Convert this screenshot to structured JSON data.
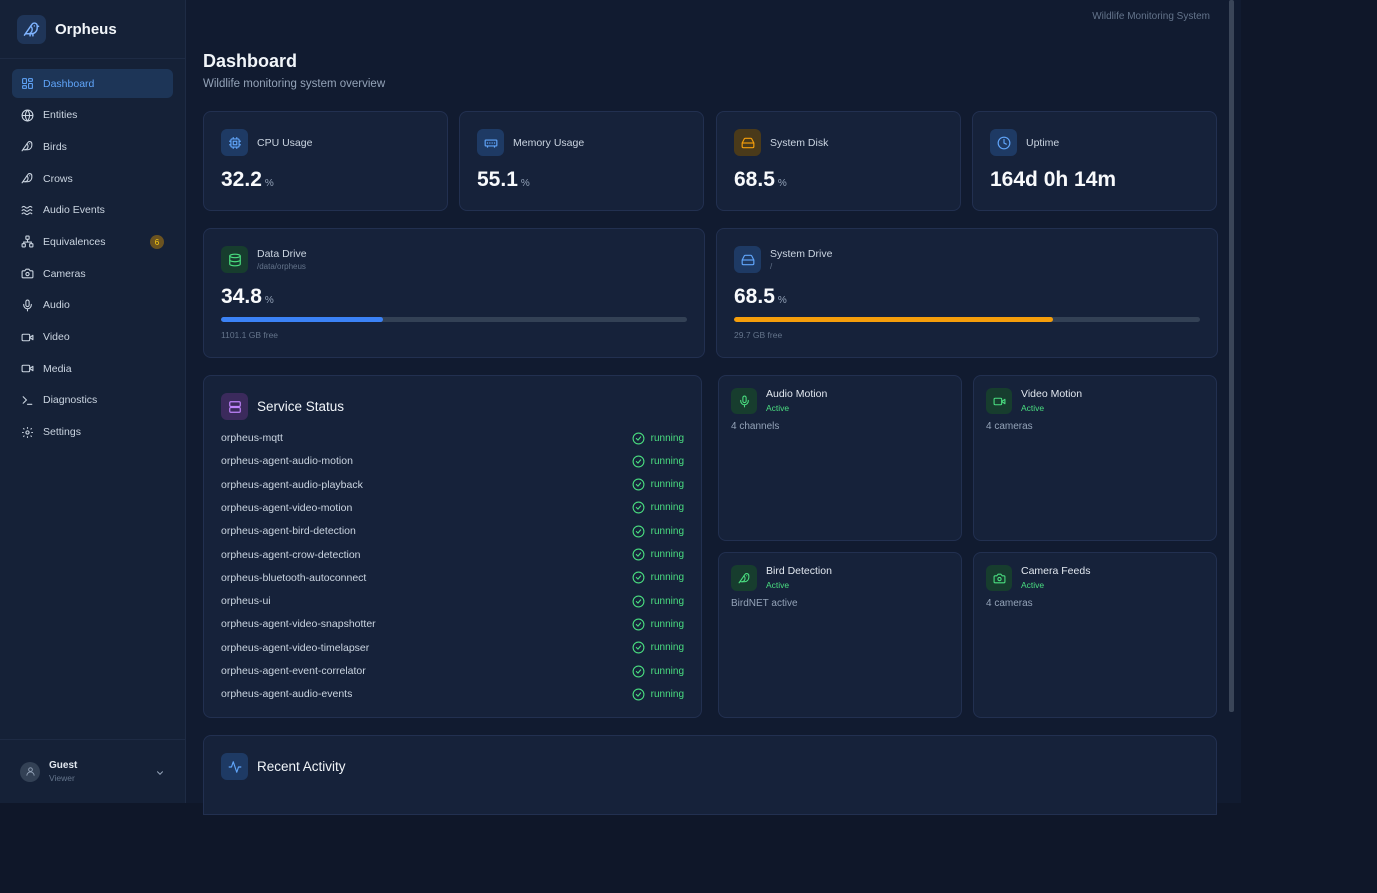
{
  "app": {
    "name": "Orpheus",
    "system_label": "Wildlife Monitoring System"
  },
  "sidebar": {
    "items": [
      {
        "label": "Dashboard",
        "icon": "grid-icon",
        "active": true
      },
      {
        "label": "Entities",
        "icon": "globe-icon"
      },
      {
        "label": "Birds",
        "icon": "bird-icon"
      },
      {
        "label": "Crows",
        "icon": "bird-icon"
      },
      {
        "label": "Audio Events",
        "icon": "waves-icon"
      },
      {
        "label": "Equivalences",
        "icon": "network-icon",
        "badge": "6"
      },
      {
        "label": "Cameras",
        "icon": "camera-icon"
      },
      {
        "label": "Audio",
        "icon": "mic-icon"
      },
      {
        "label": "Video",
        "icon": "video-icon"
      },
      {
        "label": "Media",
        "icon": "media-icon"
      },
      {
        "label": "Diagnostics",
        "icon": "terminal-icon"
      },
      {
        "label": "Settings",
        "icon": "gear-icon"
      }
    ],
    "user": {
      "name": "Guest",
      "role": "Viewer"
    }
  },
  "page": {
    "title": "Dashboard",
    "subtitle": "Wildlife monitoring system overview"
  },
  "stats": {
    "cpu": {
      "label": "CPU Usage",
      "value": "32.2",
      "unit": "%"
    },
    "memory": {
      "label": "Memory Usage",
      "value": "55.1",
      "unit": "%"
    },
    "disk": {
      "label": "System Disk",
      "value": "68.5",
      "unit": "%"
    },
    "uptime": {
      "label": "Uptime",
      "value": "164d 0h 14m"
    }
  },
  "drives": {
    "data": {
      "label": "Data Drive",
      "path": "/data/orpheus",
      "value": "34.8",
      "unit": "%",
      "percent": 34.8,
      "free": "1101.1 GB free",
      "color": "#3b82f6"
    },
    "system": {
      "label": "System Drive",
      "path": "/",
      "value": "68.5",
      "unit": "%",
      "percent": 68.5,
      "free": "29.7 GB free",
      "color": "#f59e0b"
    }
  },
  "services": {
    "title": "Service Status",
    "items": [
      {
        "name": "orpheus-mqtt",
        "status": "running"
      },
      {
        "name": "orpheus-agent-audio-motion",
        "status": "running"
      },
      {
        "name": "orpheus-agent-audio-playback",
        "status": "running"
      },
      {
        "name": "orpheus-agent-video-motion",
        "status": "running"
      },
      {
        "name": "orpheus-agent-bird-detection",
        "status": "running"
      },
      {
        "name": "orpheus-agent-crow-detection",
        "status": "running"
      },
      {
        "name": "orpheus-bluetooth-autoconnect",
        "status": "running"
      },
      {
        "name": "orpheus-ui",
        "status": "running"
      },
      {
        "name": "orpheus-agent-video-snapshotter",
        "status": "running"
      },
      {
        "name": "orpheus-agent-video-timelapser",
        "status": "running"
      },
      {
        "name": "orpheus-agent-event-correlator",
        "status": "running"
      },
      {
        "name": "orpheus-agent-audio-events",
        "status": "running"
      }
    ]
  },
  "modules": {
    "audio_motion": {
      "title": "Audio Motion",
      "state": "Active",
      "detail": "4 channels"
    },
    "video_motion": {
      "title": "Video Motion",
      "state": "Active",
      "detail": "4 cameras"
    },
    "bird_detection": {
      "title": "Bird Detection",
      "state": "Active",
      "detail": "BirdNET active"
    },
    "camera_feeds": {
      "title": "Camera Feeds",
      "state": "Active",
      "detail": "4 cameras"
    }
  },
  "activity": {
    "title": "Recent Activity"
  },
  "colors": {
    "accent": "#60a5fa",
    "success": "#4ade80",
    "warning": "#f59e0b",
    "background": "#111b30",
    "card": "#16223a"
  }
}
